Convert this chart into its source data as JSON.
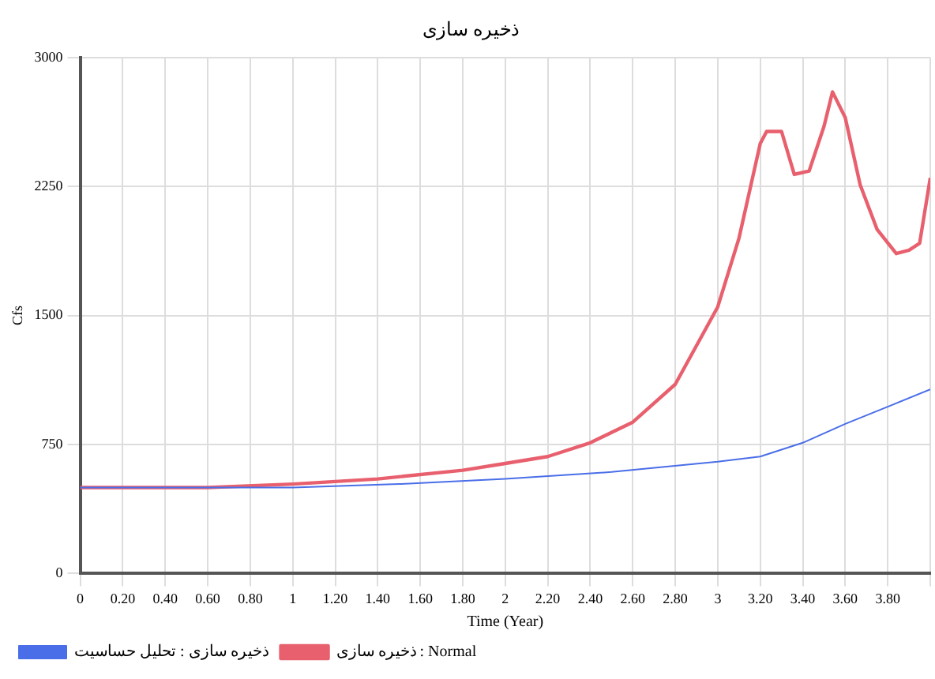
{
  "chart_data": {
    "type": "line",
    "title": "ذخیره سازی",
    "xlabel": "Time (Year)",
    "ylabel": "Cfs",
    "xlim": [
      0,
      4
    ],
    "ylim": [
      0,
      3000
    ],
    "xticks": [
      0,
      {
        "value": 0.2,
        "label": "0.20"
      },
      {
        "value": 0.4,
        "label": "0.40"
      },
      {
        "value": 0.6,
        "label": "0.60"
      },
      {
        "value": 0.8,
        "label": "0.80"
      },
      1,
      {
        "value": 1.2,
        "label": "1.20"
      },
      {
        "value": 1.4,
        "label": "1.40"
      },
      {
        "value": 1.6,
        "label": "1.60"
      },
      {
        "value": 1.8,
        "label": "1.80"
      },
      2,
      {
        "value": 2.2,
        "label": "2.20"
      },
      {
        "value": 2.4,
        "label": "2.40"
      },
      {
        "value": 2.6,
        "label": "2.60"
      },
      {
        "value": 2.8,
        "label": "2.80"
      },
      3,
      {
        "value": 3.2,
        "label": "3.20"
      },
      {
        "value": 3.4,
        "label": "3.40"
      },
      {
        "value": 3.6,
        "label": "3.60"
      },
      {
        "value": 3.8,
        "label": "3.80"
      },
      {
        "value": 4,
        "label": null
      }
    ],
    "yticks": [
      0,
      750,
      1500,
      2250,
      3000
    ],
    "grid": true,
    "legend": "bottom",
    "marker": "none",
    "line_style": "solid",
    "series": [
      {
        "name": "ذخیره سازی : تحلیل حساسیت",
        "color": "#4a6ee8",
        "x": [
          0,
          0.6,
          1,
          1.5,
          2,
          2.5,
          3,
          3.2,
          3.4,
          3.6,
          3.8,
          4
        ],
        "values": [
          500,
          500,
          500,
          520,
          550,
          590,
          650,
          680,
          760,
          870,
          970,
          1070
        ]
      },
      {
        "name": "ذخیره سازی : Normal",
        "color": "#e8606e",
        "x": [
          0,
          0.6,
          1,
          1.4,
          1.8,
          2,
          2.2,
          2.4,
          2.6,
          2.8,
          3,
          3.1,
          3.2,
          3.23,
          3.3,
          3.36,
          3.43,
          3.5,
          3.54,
          3.6,
          3.67,
          3.75,
          3.84,
          3.9,
          3.95,
          4
        ],
        "values": [
          500,
          500,
          520,
          550,
          600,
          640,
          680,
          760,
          880,
          1100,
          1550,
          1950,
          2500,
          2570,
          2570,
          2320,
          2340,
          2600,
          2800,
          2650,
          2260,
          2000,
          1860,
          1880,
          1920,
          2300
        ]
      }
    ]
  }
}
